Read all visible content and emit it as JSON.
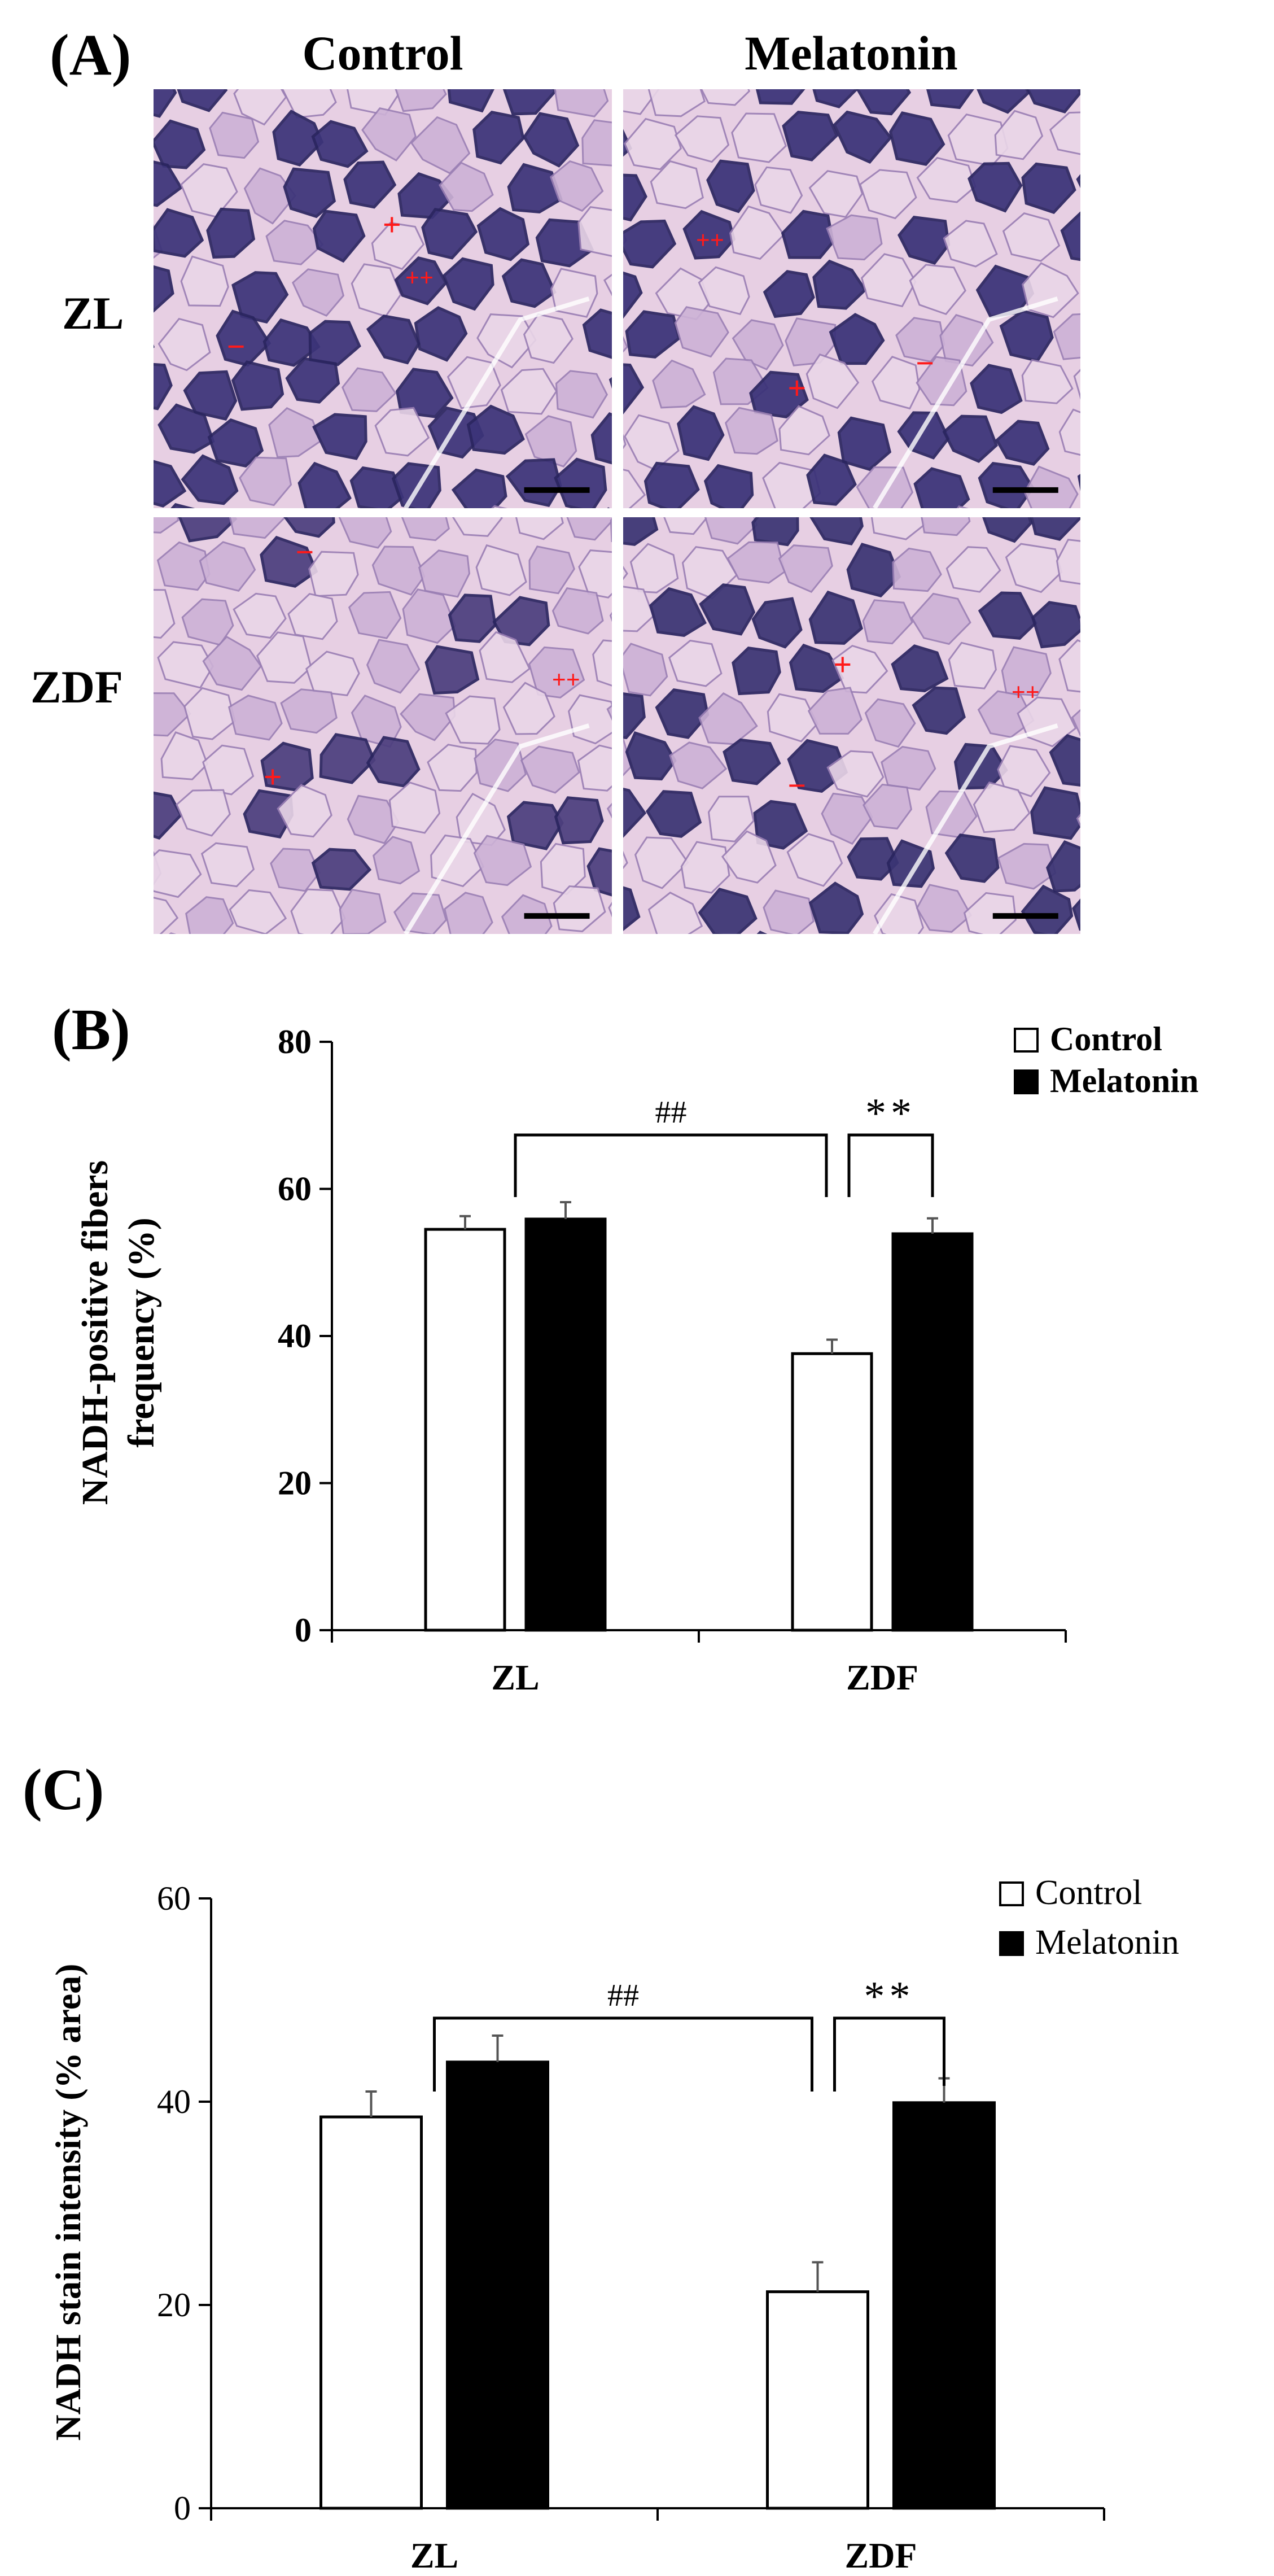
{
  "panel_a": {
    "label": "(A)",
    "columns": [
      "Control",
      "Melatonin"
    ],
    "rows": [
      "ZL",
      "ZDF"
    ],
    "images": [
      {
        "id": "zl-control",
        "markers": [
          "+",
          "++",
          "−"
        ],
        "stain_level": 0.8,
        "color": "#3c3479"
      },
      {
        "id": "zl-melatonin",
        "markers": [
          "++",
          "+",
          "−"
        ],
        "stain_level": 0.85,
        "color": "#3a3278"
      },
      {
        "id": "zdf-control",
        "markers": [
          "−",
          "++",
          "+"
        ],
        "stain_level": 0.35,
        "color": "#4d3f7e"
      },
      {
        "id": "zdf-melatonin",
        "markers": [
          "+",
          "++",
          "−"
        ],
        "stain_level": 0.8,
        "color": "#3b3574"
      }
    ],
    "marker_color": "#ff1a1a",
    "background_color": "#e7cfe3"
  },
  "chart_data": [
    {
      "panel_label": "(B)",
      "type": "bar",
      "categories": [
        "ZL",
        "ZDF"
      ],
      "series": [
        {
          "name": "Control",
          "values": [
            54.5,
            37.6
          ],
          "errors": [
            1.8,
            1.9
          ],
          "fill": "#ffffff"
        },
        {
          "name": "Melatonin",
          "values": [
            55.9,
            53.9
          ],
          "errors": [
            2.3,
            2.1
          ],
          "fill": "#000000"
        }
      ],
      "ylabel_line1": "NADH-positive fibers",
      "ylabel_line2": "frequency (%)",
      "xlabel": "",
      "ylim": [
        0,
        80
      ],
      "yticks": [
        0,
        20,
        40,
        60,
        80
      ],
      "legend_position": "top-right",
      "grid": false,
      "annotations": [
        {
          "text": "##",
          "from": "ZL",
          "to": "ZDF-Control"
        },
        {
          "text": "**",
          "from": "ZDF-Control",
          "to": "ZDF-Melatonin"
        }
      ]
    },
    {
      "panel_label": "(C)",
      "type": "bar",
      "categories": [
        "ZL",
        "ZDF"
      ],
      "series": [
        {
          "name": "Control",
          "values": [
            38.5,
            21.3
          ],
          "errors": [
            2.5,
            2.9
          ],
          "fill": "#ffffff"
        },
        {
          "name": "Melatonin",
          "values": [
            43.9,
            39.9
          ],
          "errors": [
            2.6,
            2.4
          ],
          "fill": "#000000"
        }
      ],
      "ylabel": "NADH stain intensity (% area)",
      "xlabel": "",
      "ylim": [
        0,
        60
      ],
      "yticks": [
        0,
        20,
        40,
        60
      ],
      "legend_position": "top-right",
      "grid": false,
      "annotations": [
        {
          "text": "##",
          "from": "ZL",
          "to": "ZDF-Control"
        },
        {
          "text": "**",
          "from": "ZDF-Control",
          "to": "ZDF-Melatonin"
        }
      ]
    }
  ]
}
